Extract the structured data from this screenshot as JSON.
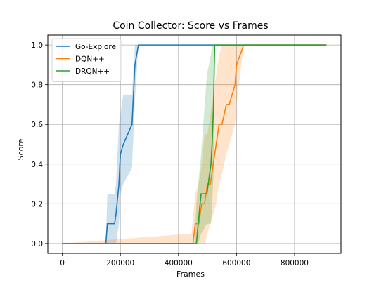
{
  "chart_data": {
    "type": "line",
    "title": "Coin Collector: Score vs Frames",
    "xlabel": "Frames",
    "ylabel": "Score",
    "xlim": [
      -50000,
      960000
    ],
    "ylim": [
      -0.05,
      1.05
    ],
    "xticks": [
      0,
      200000,
      400000,
      600000,
      800000
    ],
    "xtick_labels": [
      "0",
      "200000",
      "400000",
      "600000",
      "800000"
    ],
    "yticks": [
      0.0,
      0.2,
      0.4,
      0.6,
      0.8,
      1.0
    ],
    "ytick_labels": [
      "0.0",
      "0.2",
      "0.4",
      "0.6",
      "0.8",
      "1.0"
    ],
    "grid": true,
    "legend_placement": "top-left",
    "series": [
      {
        "name": "Go-Explore",
        "color": "#1f77b4",
        "x": [
          0,
          150000,
          155000,
          180000,
          185000,
          195000,
          200000,
          210000,
          240000,
          250000,
          262000,
          300000,
          500000,
          700000,
          900000,
          910000
        ],
        "y": [
          0,
          0,
          0.1,
          0.1,
          0.15,
          0.3,
          0.45,
          0.5,
          0.6,
          0.9,
          1.0,
          1.0,
          1.0,
          1.0,
          1.0,
          1.0
        ],
        "band_x": [
          0,
          150000,
          155000,
          180000,
          185000,
          195000,
          200000,
          210000,
          240000,
          250000,
          262000,
          300000,
          910000
        ],
        "band_lo": [
          0,
          0,
          0,
          0,
          0,
          0.1,
          0.25,
          0.3,
          0.38,
          0.72,
          1.0,
          1.0,
          1.0
        ],
        "band_hi": [
          0,
          0,
          0.25,
          0.25,
          0.3,
          0.6,
          0.65,
          0.75,
          0.75,
          1.0,
          1.0,
          1.0,
          1.0
        ]
      },
      {
        "name": "DQN++",
        "color": "#ff7f0e",
        "x": [
          0,
          450000,
          458000,
          470000,
          480000,
          490000,
          500000,
          510000,
          520000,
          530000,
          540000,
          550000,
          565000,
          575000,
          595000,
          600000,
          625000,
          630000,
          890000,
          910000
        ],
        "y": [
          0,
          0,
          0.1,
          0.1,
          0.2,
          0.2,
          0.3,
          0.3,
          0.4,
          0.5,
          0.6,
          0.6,
          0.7,
          0.7,
          0.8,
          0.9,
          1.0,
          1.0,
          1.0,
          1.0
        ],
        "band_x": [
          0,
          445000,
          458000,
          470000,
          480000,
          490000,
          500000,
          510000,
          520000,
          530000,
          540000,
          550000,
          565000,
          575000,
          595000,
          600000,
          625000,
          910000
        ],
        "band_lo": [
          0,
          0,
          0,
          0,
          0,
          0,
          0.05,
          0.1,
          0.15,
          0.2,
          0.3,
          0.35,
          0.45,
          0.5,
          0.6,
          0.7,
          1.0,
          1.0
        ],
        "band_hi": [
          0,
          0.05,
          0.25,
          0.3,
          0.4,
          0.55,
          0.55,
          0.65,
          0.75,
          0.85,
          0.95,
          1.0,
          1.0,
          1.0,
          1.0,
          1.0,
          1.0,
          1.0
        ]
      },
      {
        "name": "DRQN++",
        "color": "#2ca02c",
        "x": [
          0,
          462000,
          468000,
          478000,
          498000,
          512000,
          516000,
          521000,
          525000,
          600000,
          700000,
          910000
        ],
        "y": [
          0,
          0,
          0.1,
          0.25,
          0.25,
          0.4,
          0.5,
          0.7,
          1.0,
          1.0,
          1.0,
          1.0
        ],
        "band_x": [
          0,
          455000,
          462000,
          468000,
          478000,
          498000,
          512000,
          516000,
          521000,
          525000,
          910000
        ],
        "band_lo": [
          0,
          0,
          0,
          0,
          0.05,
          0.1,
          0.1,
          0.2,
          0.35,
          1.0,
          1.0
        ],
        "band_hi": [
          0,
          0,
          0.2,
          0.3,
          0.45,
          0.85,
          0.95,
          1.0,
          1.0,
          1.0,
          1.0
        ]
      }
    ]
  }
}
